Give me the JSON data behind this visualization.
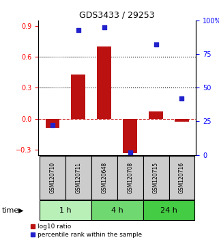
{
  "title": "GDS3433 / 29253",
  "samples": [
    "GSM120710",
    "GSM120711",
    "GSM120648",
    "GSM120708",
    "GSM120715",
    "GSM120716"
  ],
  "log10_ratio": [
    -0.09,
    0.43,
    0.7,
    -0.33,
    0.07,
    -0.03
  ],
  "percentile_rank": [
    22,
    93,
    95,
    2,
    82,
    42
  ],
  "groups": [
    {
      "label": "1 h",
      "indices": [
        0,
        1
      ],
      "color": "#b8f0b8"
    },
    {
      "label": "4 h",
      "indices": [
        2,
        3
      ],
      "color": "#70d870"
    },
    {
      "label": "24 h",
      "indices": [
        4,
        5
      ],
      "color": "#44cc44"
    }
  ],
  "bar_color": "#bb1111",
  "dot_color": "#2222cc",
  "ylim_left": [
    -0.35,
    0.95
  ],
  "ylim_right": [
    0,
    100
  ],
  "yticks_left": [
    -0.3,
    0.0,
    0.3,
    0.6,
    0.9
  ],
  "yticks_right": [
    0,
    25,
    50,
    75,
    100
  ],
  "hlines_dotted": [
    0.3,
    0.6
  ],
  "hline_zero": 0.0,
  "bar_width": 0.55,
  "dot_size": 22,
  "background_color": "#ffffff",
  "label_bg_color": "#cccccc",
  "time_label": "time",
  "legend_ratio_label": "log10 ratio",
  "legend_rank_label": "percentile rank within the sample"
}
